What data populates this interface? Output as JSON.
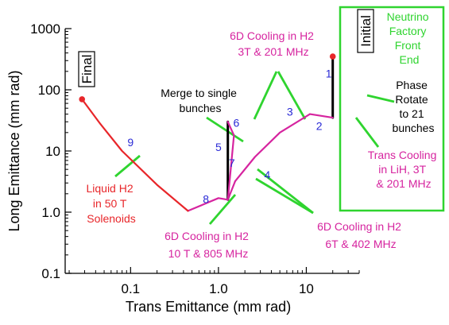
{
  "chart_data": {
    "type": "line",
    "xlabel": "Trans Emittance  (mm rad)",
    "ylabel": "Long Emittance  (mm rad)",
    "x_scale": "log",
    "y_scale": "log",
    "xlim": [
      0.018,
      40
    ],
    "ylim": [
      0.1,
      1000
    ],
    "x_ticks": [
      {
        "v": 0.1,
        "label": "0.1"
      },
      {
        "v": 1,
        "label": "1.0"
      },
      {
        "v": 10,
        "label": "10"
      }
    ],
    "y_ticks": [
      {
        "v": 0.1,
        "label": "0.1"
      },
      {
        "v": 1,
        "label": "1.0"
      },
      {
        "v": 10,
        "label": "10"
      },
      {
        "v": 100,
        "label": "100"
      },
      {
        "v": 1000,
        "label": "1000"
      }
    ],
    "colors": {
      "red": "#e8262a",
      "magenta": "#d6249f",
      "black": "#000000",
      "green": "#2fd42f",
      "blue": "#2a2ad6"
    },
    "segments": [
      {
        "id": "initial-phase-rotate",
        "color": "black",
        "points": [
          [
            20,
            350
          ],
          [
            20,
            35
          ]
        ]
      },
      {
        "id": "stage-2",
        "color": "magenta",
        "points": [
          [
            20,
            35
          ],
          [
            11,
            40
          ]
        ]
      },
      {
        "id": "stage-3",
        "color": "magenta",
        "points": [
          [
            11,
            40
          ],
          [
            5,
            20
          ],
          [
            2.6,
            8
          ],
          [
            1.55,
            3.2
          ]
        ]
      },
      {
        "id": "stage-4-7",
        "color": "magenta",
        "points": [
          [
            1.55,
            3.2
          ],
          [
            1.28,
            1.6
          ]
        ]
      },
      {
        "id": "merge",
        "color": "black",
        "points": [
          [
            1.28,
            1.6
          ],
          [
            1.28,
            30
          ]
        ]
      },
      {
        "id": "stage-6",
        "color": "magenta",
        "points": [
          [
            1.28,
            30
          ],
          [
            1.5,
            18
          ],
          [
            1.28,
            1.6
          ]
        ]
      },
      {
        "id": "stage-8",
        "color": "magenta",
        "points": [
          [
            1.28,
            1.6
          ],
          [
            1.0,
            1.7
          ],
          [
            0.45,
            1.05
          ]
        ]
      },
      {
        "id": "stage-9",
        "color": "red",
        "points": [
          [
            0.45,
            1.05
          ],
          [
            0.2,
            2.8
          ],
          [
            0.08,
            10
          ],
          [
            0.045,
            28
          ],
          [
            0.028,
            70
          ]
        ]
      }
    ],
    "endpoints": [
      {
        "id": "initial-dot",
        "x": 20,
        "y": 350
      },
      {
        "id": "final-dot",
        "x": 0.028,
        "y": 70
      }
    ],
    "stage_labels": [
      {
        "id": "stage-label-1",
        "text": "1",
        "x": 18,
        "y": 160
      },
      {
        "id": "stage-label-2",
        "text": "2",
        "x": 14,
        "y": 22
      },
      {
        "id": "stage-label-3",
        "text": "3",
        "x": 6.5,
        "y": 38
      },
      {
        "id": "stage-label-4",
        "text": "4",
        "x": 3.6,
        "y": 3.5
      },
      {
        "id": "stage-label-5",
        "text": "5",
        "x": 1.0,
        "y": 10
      },
      {
        "id": "stage-label-6",
        "text": "6",
        "x": 1.6,
        "y": 25
      },
      {
        "id": "stage-label-7",
        "text": "7",
        "x": 1.42,
        "y": 5.5
      },
      {
        "id": "stage-label-8",
        "text": "8",
        "x": 0.72,
        "y": 1.4
      },
      {
        "id": "stage-label-9",
        "text": "9",
        "x": 0.1,
        "y": 12
      }
    ],
    "annotations": {
      "initial": "Initial",
      "final": "Final",
      "neutrino": [
        "Neutrino",
        "Factory",
        "Front",
        "End"
      ],
      "phase_rotate": [
        "Phase",
        "Rotate",
        "to 21",
        "bunches"
      ],
      "trans_cooling": [
        "Trans Cooling",
        "in LiH, 3T",
        "& 201 MHz"
      ],
      "cooling_201": [
        "6D Cooling in H2",
        "3T & 201 MHz"
      ],
      "merge": [
        "Merge to single",
        "bunches"
      ],
      "liquid_h2": [
        "Liquid H2",
        "in 50 T",
        "Solenoids"
      ],
      "cooling_805": [
        "6D Cooling in H2",
        "10 T & 805 MHz"
      ],
      "cooling_402": [
        "6D Cooling in H2",
        "6T & 402 MHz"
      ]
    }
  }
}
